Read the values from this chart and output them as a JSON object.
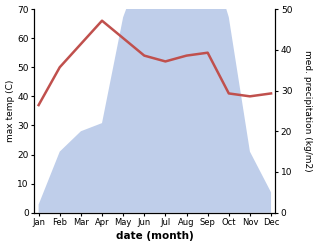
{
  "months": [
    "Jan",
    "Feb",
    "Mar",
    "Apr",
    "May",
    "Jun",
    "Jul",
    "Aug",
    "Sep",
    "Oct",
    "Nov",
    "Dec"
  ],
  "month_indices": [
    0,
    1,
    2,
    3,
    4,
    5,
    6,
    7,
    8,
    9,
    10,
    11
  ],
  "temperature": [
    37,
    50,
    58,
    66,
    60,
    54,
    52,
    54,
    55,
    41,
    40,
    41
  ],
  "precipitation": [
    2,
    15,
    20,
    22,
    48,
    62,
    65,
    65,
    65,
    48,
    15,
    5
  ],
  "temp_ylim": [
    0,
    70
  ],
  "precip_ylim": [
    0,
    50
  ],
  "temp_color": "#c0504d",
  "precip_color": "#b8c9e8",
  "xlabel": "date (month)",
  "ylabel_left": "max temp (C)",
  "ylabel_right": "med. precipitation (kg/m2)",
  "temp_linewidth": 1.8,
  "background_color": "#ffffff"
}
